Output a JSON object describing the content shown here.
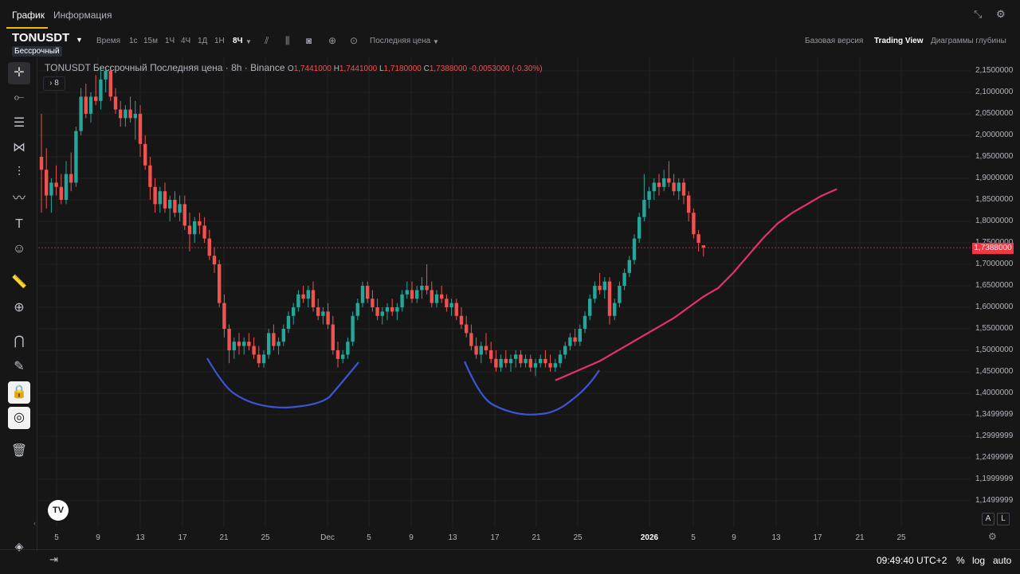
{
  "tabs": {
    "chart": "График",
    "info": "Информация"
  },
  "toolbar": {
    "symbol": "TONUSDT",
    "subtype": "Бессрочный",
    "time_label": "Время",
    "intervals": [
      "1с",
      "15м",
      "1Ч",
      "4Ч",
      "1Д",
      "1Н"
    ],
    "active_interval": "8Ч",
    "price_type": "Последняя цена",
    "views": {
      "basic": "Базовая версия",
      "trading_view": "Trading View",
      "depth": "Диаграммы глубины"
    }
  },
  "legend": {
    "title": "TONUSDT Бессрочный Последняя цена · 8h · Binance",
    "open": "1,7441000",
    "high": "1,7441000",
    "low": "1,7180000",
    "close": "1,7388000",
    "change": "-0,0053000 (-0.30%)",
    "indicator_count": "8"
  },
  "price_axis": {
    "labels": [
      "2,1500000",
      "2,1000000",
      "2,0500000",
      "2,0000000",
      "1,9500000",
      "1,9000000",
      "1,8500000",
      "1,8000000",
      "1,7500000",
      "1,7000000",
      "1,6500000",
      "1,6000000",
      "1,5500000",
      "1,5000000",
      "1,4500000",
      "1,4000000",
      "1,3499999",
      "1,2999999",
      "1,2499999",
      "1,1999999",
      "1,1499999"
    ],
    "current_price": "1,7388000"
  },
  "time_axis": [
    "5",
    "9",
    "13",
    "17",
    "21",
    "25",
    "Dec",
    "5",
    "9",
    "13",
    "17",
    "21",
    "25",
    "2026",
    "5",
    "9",
    "13",
    "17",
    "21",
    "25"
  ],
  "bottom": {
    "clock": "09:49:40 UTC+2",
    "percent": "%",
    "log": "log",
    "auto": "auto"
  },
  "axis_buttons": {
    "a": "A",
    "l": "L"
  },
  "logo": "TV",
  "colors": {
    "up": "#26a69a",
    "down": "#ef5350",
    "arc": "#3a55d6",
    "ma": "#e8306a",
    "accent": "#f0b90b"
  },
  "chart_data": {
    "type": "candlestick",
    "timeframe": "8h",
    "y_range": [
      1.12,
      2.17
    ],
    "current_price": 1.7388,
    "overlays": [
      {
        "type": "moving-average",
        "color": "#e8306a"
      },
      {
        "type": "hand-drawn-arc",
        "color": "#3a55d6",
        "count": 2
      }
    ],
    "candles": [
      [
        1.95,
        2.05,
        1.82,
        1.92
      ],
      [
        1.92,
        1.97,
        1.83,
        1.86
      ],
      [
        1.86,
        1.9,
        1.82,
        1.89
      ],
      [
        1.89,
        1.93,
        1.86,
        1.88
      ],
      [
        1.88,
        1.91,
        1.84,
        1.85
      ],
      [
        1.85,
        1.94,
        1.84,
        1.91
      ],
      [
        1.91,
        1.96,
        1.87,
        1.89
      ],
      [
        1.89,
        2.02,
        1.88,
        2.01
      ],
      [
        2.01,
        2.11,
        2.0,
        2.09
      ],
      [
        2.09,
        2.12,
        2.04,
        2.05
      ],
      [
        2.05,
        2.1,
        2.03,
        2.09
      ],
      [
        2.09,
        2.14,
        2.07,
        2.08
      ],
      [
        2.08,
        2.16,
        2.06,
        2.13
      ],
      [
        2.13,
        2.16,
        2.1,
        2.15
      ],
      [
        2.15,
        2.16,
        2.08,
        2.09
      ],
      [
        2.09,
        2.11,
        2.05,
        2.06
      ],
      [
        2.06,
        2.08,
        2.02,
        2.04
      ],
      [
        2.04,
        2.07,
        2.02,
        2.06
      ],
      [
        2.06,
        2.09,
        2.03,
        2.04
      ],
      [
        2.04,
        2.08,
        1.99,
        2.05
      ],
      [
        2.05,
        2.07,
        1.95,
        1.98
      ],
      [
        1.98,
        2.0,
        1.92,
        1.93
      ],
      [
        1.93,
        1.95,
        1.85,
        1.88
      ],
      [
        1.88,
        1.9,
        1.82,
        1.84
      ],
      [
        1.84,
        1.88,
        1.82,
        1.87
      ],
      [
        1.87,
        1.89,
        1.82,
        1.83
      ],
      [
        1.83,
        1.86,
        1.8,
        1.85
      ],
      [
        1.85,
        1.87,
        1.81,
        1.82
      ],
      [
        1.82,
        1.86,
        1.8,
        1.84
      ],
      [
        1.84,
        1.86,
        1.78,
        1.79
      ],
      [
        1.79,
        1.82,
        1.73,
        1.77
      ],
      [
        1.77,
        1.81,
        1.75,
        1.8
      ],
      [
        1.8,
        1.82,
        1.77,
        1.79
      ],
      [
        1.79,
        1.81,
        1.75,
        1.76
      ],
      [
        1.76,
        1.78,
        1.71,
        1.72
      ],
      [
        1.72,
        1.74,
        1.68,
        1.7
      ],
      [
        1.7,
        1.71,
        1.6,
        1.61
      ],
      [
        1.61,
        1.63,
        1.53,
        1.55
      ],
      [
        1.55,
        1.56,
        1.47,
        1.5
      ],
      [
        1.5,
        1.53,
        1.48,
        1.52
      ],
      [
        1.52,
        1.54,
        1.49,
        1.51
      ],
      [
        1.51,
        1.53,
        1.49,
        1.52
      ],
      [
        1.52,
        1.54,
        1.5,
        1.51
      ],
      [
        1.51,
        1.53,
        1.48,
        1.49
      ],
      [
        1.49,
        1.51,
        1.46,
        1.47
      ],
      [
        1.47,
        1.5,
        1.46,
        1.49
      ],
      [
        1.49,
        1.55,
        1.48,
        1.54
      ],
      [
        1.54,
        1.56,
        1.5,
        1.51
      ],
      [
        1.51,
        1.53,
        1.49,
        1.52
      ],
      [
        1.52,
        1.56,
        1.51,
        1.55
      ],
      [
        1.55,
        1.59,
        1.54,
        1.58
      ],
      [
        1.58,
        1.61,
        1.56,
        1.6
      ],
      [
        1.6,
        1.64,
        1.59,
        1.63
      ],
      [
        1.63,
        1.65,
        1.61,
        1.62
      ],
      [
        1.62,
        1.65,
        1.6,
        1.64
      ],
      [
        1.64,
        1.66,
        1.59,
        1.6
      ],
      [
        1.6,
        1.62,
        1.57,
        1.58
      ],
      [
        1.58,
        1.6,
        1.56,
        1.59
      ],
      [
        1.59,
        1.61,
        1.55,
        1.56
      ],
      [
        1.56,
        1.58,
        1.49,
        1.5
      ],
      [
        1.5,
        1.52,
        1.46,
        1.48
      ],
      [
        1.48,
        1.5,
        1.47,
        1.49
      ],
      [
        1.49,
        1.53,
        1.48,
        1.52
      ],
      [
        1.52,
        1.59,
        1.51,
        1.58
      ],
      [
        1.58,
        1.62,
        1.57,
        1.61
      ],
      [
        1.61,
        1.66,
        1.6,
        1.65
      ],
      [
        1.65,
        1.66,
        1.61,
        1.62
      ],
      [
        1.62,
        1.64,
        1.59,
        1.6
      ],
      [
        1.6,
        1.62,
        1.57,
        1.58
      ],
      [
        1.58,
        1.6,
        1.56,
        1.59
      ],
      [
        1.59,
        1.61,
        1.57,
        1.6
      ],
      [
        1.6,
        1.62,
        1.58,
        1.59
      ],
      [
        1.59,
        1.61,
        1.57,
        1.6
      ],
      [
        1.6,
        1.64,
        1.59,
        1.63
      ],
      [
        1.63,
        1.66,
        1.62,
        1.64
      ],
      [
        1.64,
        1.66,
        1.61,
        1.62
      ],
      [
        1.62,
        1.65,
        1.61,
        1.64
      ],
      [
        1.64,
        1.67,
        1.62,
        1.65
      ],
      [
        1.65,
        1.7,
        1.63,
        1.64
      ],
      [
        1.64,
        1.66,
        1.6,
        1.61
      ],
      [
        1.61,
        1.64,
        1.6,
        1.63
      ],
      [
        1.63,
        1.65,
        1.61,
        1.62
      ],
      [
        1.62,
        1.63,
        1.59,
        1.6
      ],
      [
        1.6,
        1.62,
        1.58,
        1.61
      ],
      [
        1.61,
        1.62,
        1.57,
        1.58
      ],
      [
        1.58,
        1.6,
        1.55,
        1.56
      ],
      [
        1.56,
        1.58,
        1.53,
        1.54
      ],
      [
        1.54,
        1.56,
        1.5,
        1.51
      ],
      [
        1.51,
        1.53,
        1.48,
        1.49
      ],
      [
        1.49,
        1.52,
        1.47,
        1.51
      ],
      [
        1.51,
        1.54,
        1.49,
        1.5
      ],
      [
        1.5,
        1.52,
        1.47,
        1.48
      ],
      [
        1.48,
        1.5,
        1.45,
        1.46
      ],
      [
        1.46,
        1.49,
        1.45,
        1.48
      ],
      [
        1.48,
        1.5,
        1.46,
        1.47
      ],
      [
        1.47,
        1.49,
        1.45,
        1.48
      ],
      [
        1.48,
        1.5,
        1.46,
        1.49
      ],
      [
        1.49,
        1.5,
        1.46,
        1.47
      ],
      [
        1.47,
        1.49,
        1.46,
        1.48
      ],
      [
        1.48,
        1.49,
        1.45,
        1.46
      ],
      [
        1.46,
        1.48,
        1.44,
        1.47
      ],
      [
        1.47,
        1.49,
        1.46,
        1.48
      ],
      [
        1.48,
        1.5,
        1.46,
        1.47
      ],
      [
        1.47,
        1.49,
        1.45,
        1.46
      ],
      [
        1.46,
        1.48,
        1.45,
        1.47
      ],
      [
        1.47,
        1.5,
        1.46,
        1.49
      ],
      [
        1.49,
        1.52,
        1.48,
        1.51
      ],
      [
        1.51,
        1.54,
        1.5,
        1.53
      ],
      [
        1.53,
        1.55,
        1.51,
        1.52
      ],
      [
        1.52,
        1.56,
        1.51,
        1.55
      ],
      [
        1.55,
        1.59,
        1.54,
        1.58
      ],
      [
        1.58,
        1.63,
        1.57,
        1.62
      ],
      [
        1.62,
        1.66,
        1.61,
        1.65
      ],
      [
        1.65,
        1.68,
        1.63,
        1.64
      ],
      [
        1.64,
        1.67,
        1.62,
        1.66
      ],
      [
        1.66,
        1.67,
        1.56,
        1.58
      ],
      [
        1.58,
        1.62,
        1.57,
        1.61
      ],
      [
        1.61,
        1.66,
        1.6,
        1.65
      ],
      [
        1.65,
        1.69,
        1.64,
        1.68
      ],
      [
        1.68,
        1.72,
        1.67,
        1.71
      ],
      [
        1.71,
        1.77,
        1.7,
        1.76
      ],
      [
        1.76,
        1.82,
        1.75,
        1.81
      ],
      [
        1.81,
        1.91,
        1.8,
        1.85
      ],
      [
        1.85,
        1.88,
        1.83,
        1.87
      ],
      [
        1.87,
        1.9,
        1.85,
        1.89
      ],
      [
        1.89,
        1.91,
        1.86,
        1.88
      ],
      [
        1.88,
        1.92,
        1.87,
        1.9
      ],
      [
        1.9,
        1.94,
        1.88,
        1.89
      ],
      [
        1.89,
        1.91,
        1.86,
        1.87
      ],
      [
        1.87,
        1.9,
        1.85,
        1.89
      ],
      [
        1.89,
        1.9,
        1.84,
        1.86
      ],
      [
        1.86,
        1.87,
        1.8,
        1.82
      ],
      [
        1.82,
        1.83,
        1.76,
        1.77
      ],
      [
        1.77,
        1.78,
        1.73,
        1.75
      ],
      [
        1.7441,
        1.7441,
        1.718,
        1.7388
      ]
    ],
    "moving_average": [
      [
        104,
        1.43
      ],
      [
        107,
        1.445
      ],
      [
        110,
        1.46
      ],
      [
        113,
        1.475
      ],
      [
        116,
        1.495
      ],
      [
        119,
        1.515
      ],
      [
        122,
        1.535
      ],
      [
        125,
        1.555
      ],
      [
        128,
        1.575
      ],
      [
        131,
        1.6
      ],
      [
        134,
        1.625
      ],
      [
        137,
        1.645
      ],
      [
        140,
        1.68
      ],
      [
        143,
        1.72
      ],
      [
        146,
        1.76
      ],
      [
        149,
        1.795
      ],
      [
        152,
        1.82
      ],
      [
        155,
        1.84
      ],
      [
        158,
        1.86
      ],
      [
        161,
        1.875
      ]
    ]
  }
}
